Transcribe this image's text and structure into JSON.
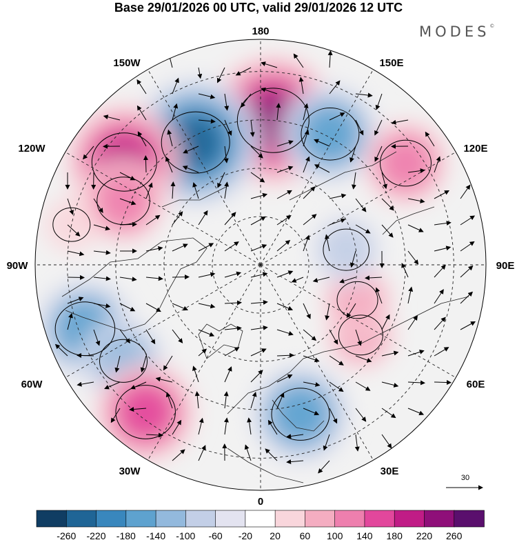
{
  "title": "Base 29/01/2026 00 UTC, valid 29/01/2026 12 UTC",
  "brand": "MODES",
  "brand_mark": "©",
  "longitude_labels": {
    "top": "180",
    "bottom": "0",
    "left": "90W",
    "right": "90E",
    "upper_left": "150W",
    "upper_right": "150E",
    "left_upper": "120W",
    "right_upper": "120E",
    "left_lower": "60W",
    "right_lower": "60E",
    "lower_left": "30W",
    "lower_right": "30E"
  },
  "reference_vector": {
    "label": "30"
  },
  "colorbar": {
    "colors": [
      "#103d63",
      "#1f6596",
      "#3987bd",
      "#5ea2cf",
      "#93b9dd",
      "#c3cfe7",
      "#e3e3f0",
      "#ffffff",
      "#f9d6dc",
      "#f4adc1",
      "#ee7fae",
      "#e2479c",
      "#c01c86",
      "#8f0f79",
      "#5a0f6d"
    ],
    "ticks": [
      "-260",
      "-220",
      "-180",
      "-140",
      "-100",
      "-60",
      "-20",
      "20",
      "60",
      "100",
      "140",
      "180",
      "220",
      "260"
    ]
  },
  "anomalies": [
    {
      "lon": 175,
      "lat": 45,
      "value": 240
    },
    {
      "lon": 208,
      "lat": 47,
      "value": -220
    },
    {
      "lon": 152,
      "lat": 44,
      "value": -160
    },
    {
      "lon": 233,
      "lat": 37,
      "value": 200
    },
    {
      "lon": 245,
      "lat": 43,
      "value": 130
    },
    {
      "lon": 125,
      "lat": 35,
      "value": 120
    },
    {
      "lon": 290,
      "lat": 32,
      "value": -170
    },
    {
      "lon": 305,
      "lat": 38,
      "value": -100
    },
    {
      "lon": 322,
      "lat": 32,
      "value": 170
    },
    {
      "lon": 15,
      "lat": 42,
      "value": -160
    },
    {
      "lon": 55,
      "lat": 52,
      "value": 80
    },
    {
      "lon": 70,
      "lat": 58,
      "value": 60
    },
    {
      "lon": 100,
      "lat": 63,
      "value": -90
    },
    {
      "lon": 258,
      "lat": 30,
      "value": 40
    }
  ]
}
